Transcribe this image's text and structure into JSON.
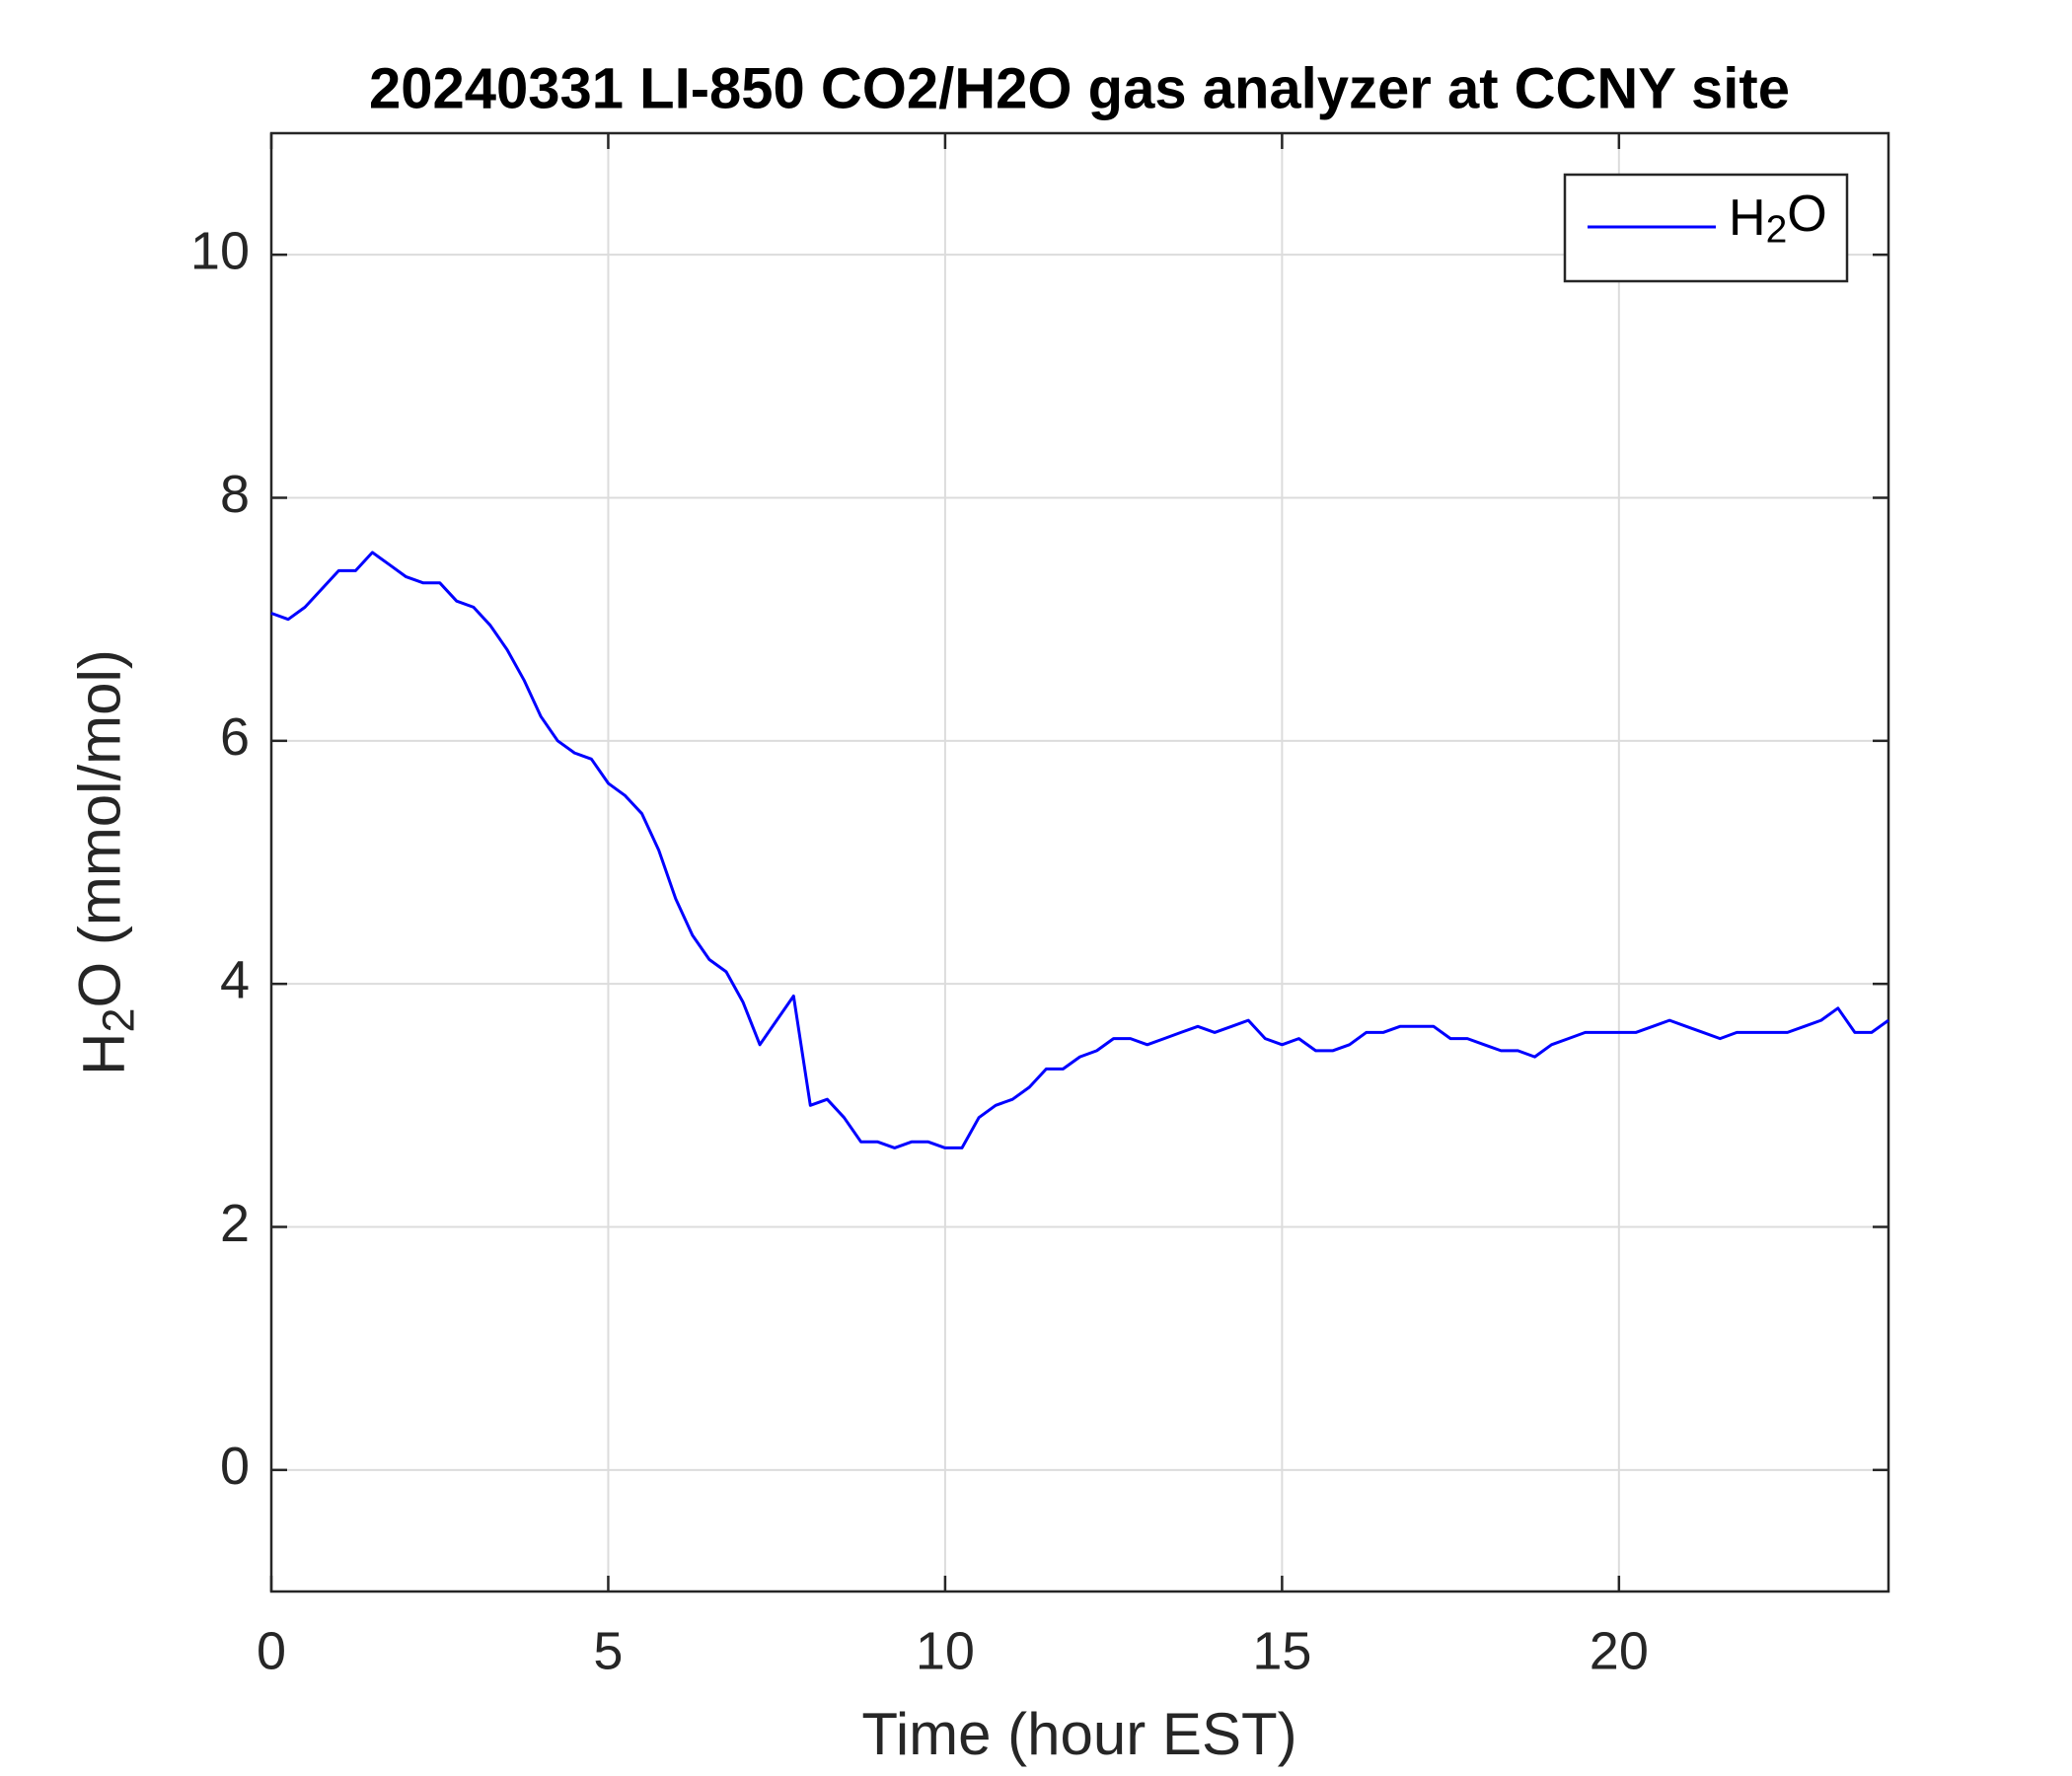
{
  "chart_data": {
    "type": "line",
    "title": "20240331 LI-850 CO2/H2O gas analyzer at CCNY site",
    "x_label": "Time (hour EST)",
    "y_label": "H2O (mmol/mol)",
    "xlim": [
      0,
      24
    ],
    "xticks": [
      0,
      5,
      10,
      15,
      20
    ],
    "ylim": [
      -1,
      11
    ],
    "yticks": [
      0,
      2,
      4,
      6,
      8,
      10
    ],
    "grid": true,
    "legend": "top-right",
    "x": [
      0,
      0.25,
      0.5,
      0.75,
      1,
      1.25,
      1.5,
      1.75,
      2,
      2.25,
      2.5,
      2.75,
      3,
      3.25,
      3.5,
      3.75,
      4,
      4.25,
      4.5,
      4.75,
      5,
      5.25,
      5.5,
      5.75,
      6,
      6.25,
      6.5,
      6.75,
      7,
      7.25,
      7.5,
      7.75,
      8,
      8.25,
      8.5,
      8.75,
      9,
      9.25,
      9.5,
      9.75,
      10,
      10.25,
      10.5,
      10.75,
      11,
      11.25,
      11.5,
      11.75,
      12,
      12.25,
      12.5,
      12.75,
      13,
      13.25,
      13.5,
      13.75,
      14,
      14.25,
      14.5,
      14.75,
      15,
      15.25,
      15.5,
      15.75,
      16,
      16.25,
      16.5,
      16.75,
      17,
      17.25,
      17.5,
      17.75,
      18,
      18.25,
      18.5,
      18.75,
      19,
      19.25,
      19.5,
      19.75,
      20,
      20.25,
      20.5,
      20.75,
      21,
      21.25,
      21.5,
      21.75,
      22,
      22.25,
      22.5,
      22.75,
      23,
      23.25,
      23.5,
      23.75,
      24
    ],
    "series": [
      {
        "name": "H2O",
        "color": "#0000ff",
        "values": [
          7.05,
          7.0,
          7.1,
          7.25,
          7.4,
          7.4,
          7.55,
          7.45,
          7.35,
          7.3,
          7.3,
          7.15,
          7.1,
          6.95,
          6.75,
          6.5,
          6.2,
          6.0,
          5.9,
          5.85,
          5.65,
          5.55,
          5.4,
          5.1,
          4.7,
          4.4,
          4.2,
          4.1,
          3.85,
          3.5,
          3.7,
          3.9,
          3.0,
          3.05,
          2.9,
          2.7,
          2.7,
          2.65,
          2.7,
          2.7,
          2.65,
          2.65,
          2.9,
          3.0,
          3.05,
          3.15,
          3.3,
          3.3,
          3.4,
          3.45,
          3.55,
          3.55,
          3.5,
          3.55,
          3.6,
          3.65,
          3.6,
          3.65,
          3.7,
          3.55,
          3.5,
          3.55,
          3.45,
          3.45,
          3.5,
          3.6,
          3.6,
          3.65,
          3.65,
          3.65,
          3.55,
          3.55,
          3.5,
          3.45,
          3.45,
          3.4,
          3.5,
          3.55,
          3.6,
          3.6,
          3.6,
          3.6,
          3.65,
          3.7,
          3.65,
          3.6,
          3.55,
          3.6,
          3.6,
          3.6,
          3.6,
          3.65,
          3.7,
          3.8,
          3.6,
          3.6,
          3.7
        ]
      }
    ]
  }
}
